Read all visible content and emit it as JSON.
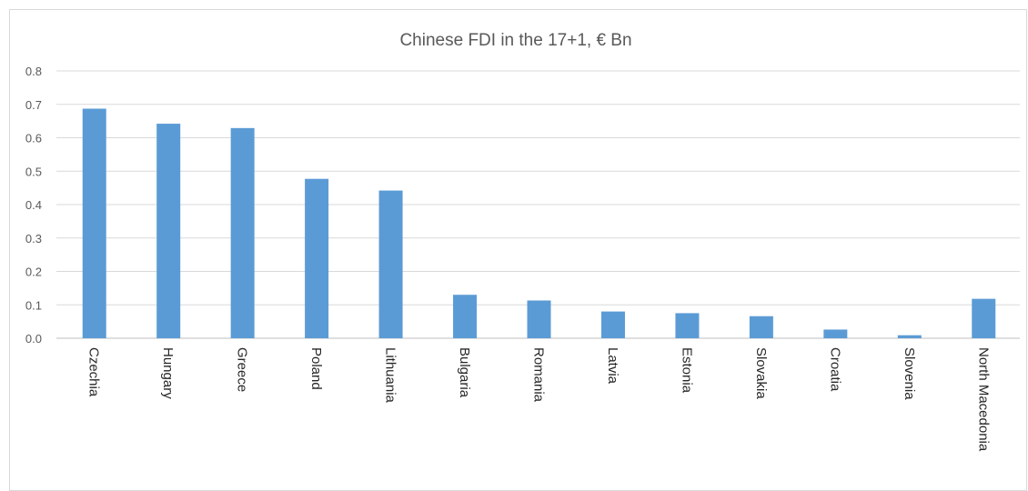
{
  "chart_data": {
    "type": "bar",
    "title": "Chinese FDI in the 17+1, € Bn",
    "categories": [
      "Czechia",
      "Hungary",
      "Greece",
      "Poland",
      "Lithuania",
      "Bulgaria",
      "Romania",
      "Latvia",
      "Estonia",
      "Slovakia",
      "Croatia",
      "Slovenia",
      "North Macedonia"
    ],
    "values": [
      0.687,
      0.642,
      0.629,
      0.477,
      0.442,
      0.13,
      0.113,
      0.08,
      0.075,
      0.066,
      0.026,
      0.009,
      0.118
    ],
    "ylim": [
      0,
      0.8
    ],
    "yticks": [
      "0.0",
      "0.1",
      "0.2",
      "0.3",
      "0.4",
      "0.5",
      "0.6",
      "0.7",
      "0.8"
    ],
    "grid": true,
    "bar_color": "#5b9bd5"
  }
}
